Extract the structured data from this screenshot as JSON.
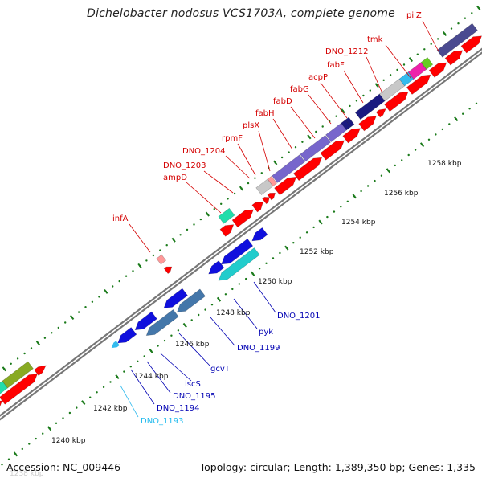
{
  "title": "Dichelobacter nodosus VCS1703A, complete genome",
  "accession": "Accession: NC_009446",
  "topology": "Topology: circular; Length: 1,389,350 bp; Genes: 1,335",
  "colors": {
    "cds_red": "#ff0000",
    "backbone": "#999999",
    "upper_label": "#d40000",
    "lower_label": "#0000b3",
    "ticks": "#1a7a1a",
    "purple": "#7766cc",
    "navy": "#1a1a80",
    "blue": "#1010dd",
    "steelblue": "#4477aa",
    "cyan": "#22cccc",
    "teal": "#22ddaa",
    "green": "#66cc22",
    "magenta": "#ee22aa",
    "skyblue": "#33bbee",
    "silver": "#c8c8c8",
    "pink": "#ff9999",
    "darkslate": "#4a4a90",
    "olive": "#88aa22"
  },
  "scale_labels": [
    "1238 kbp",
    "1240 kbp",
    "1242 kbp",
    "1244 kbp",
    "1246 kbp",
    "1248 kbp",
    "1250 kbp",
    "1252 kbp",
    "1254 kbp",
    "1256 kbp",
    "1258 kbp"
  ],
  "upper_genes": [
    "infA",
    "ampD",
    "DNO_1203",
    "DNO_1204",
    "rpmF",
    "plsX",
    "fabH",
    "fabD",
    "fabG",
    "acpP",
    "fabF",
    "DNO_1212",
    "tmk",
    "pilZ"
  ],
  "lower_genes": [
    "DNO_1193",
    "DNO_1194",
    "DNO_1195",
    "iscS",
    "gcvT",
    "DNO_1199",
    "pyk",
    "DNO_1201"
  ]
}
